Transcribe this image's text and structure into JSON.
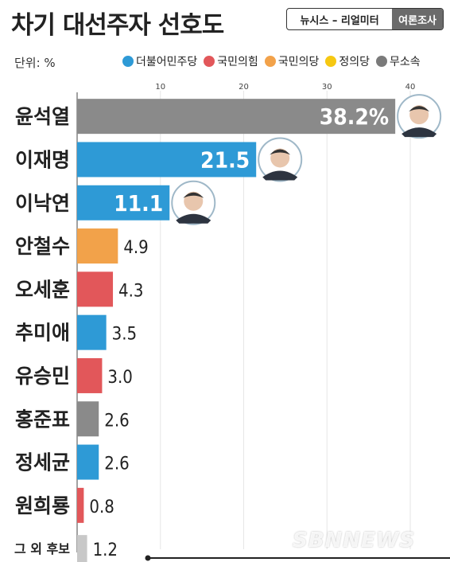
{
  "header": {
    "title": "차기 대선주자 선호도",
    "source": "뉴시스 – 리얼미터",
    "source_kind": "여론조사",
    "unit": "단위: %"
  },
  "legend": [
    {
      "label": "더불어민주당",
      "color": "#2e9ad6"
    },
    {
      "label": "국민의힘",
      "color": "#e2575a"
    },
    {
      "label": "국민의당",
      "color": "#f2a24a"
    },
    {
      "label": "정의당",
      "color": "#f6c812"
    },
    {
      "label": "무소속",
      "color": "#7a7a7a"
    }
  ],
  "watermark": "SBNNEWS",
  "chart_data": {
    "type": "bar",
    "orientation": "horizontal",
    "title": "차기 대선주자 선호도",
    "unit": "%",
    "xlim": [
      0,
      40
    ],
    "ticks": [
      10,
      20,
      30,
      40
    ],
    "categories": [
      "윤석열",
      "이재명",
      "이낙연",
      "안철수",
      "오세훈",
      "추미애",
      "유승민",
      "홍준표",
      "정세균",
      "원희룡",
      "그 외 후보"
    ],
    "values": [
      38.2,
      21.5,
      11.1,
      4.9,
      4.3,
      3.5,
      3.0,
      2.6,
      2.6,
      0.8,
      1.2
    ],
    "labels": [
      "38.2%",
      "21.5",
      "11.1",
      "4.9",
      "4.3",
      "3.5",
      "3.0",
      "2.6",
      "2.6",
      "0.8",
      "1.2"
    ],
    "parties": [
      "무소속",
      "더불어민주당",
      "더불어민주당",
      "국민의당",
      "국민의힘",
      "더불어민주당",
      "국민의힘",
      "무소속",
      "더불어민주당",
      "국민의힘",
      "기타"
    ],
    "colors": [
      "#8a8a8a",
      "#2e9ad6",
      "#2e9ad6",
      "#f2a24a",
      "#e2575a",
      "#2e9ad6",
      "#e2575a",
      "#8a8a8a",
      "#2e9ad6",
      "#e2575a",
      "#c8c8c8"
    ]
  }
}
